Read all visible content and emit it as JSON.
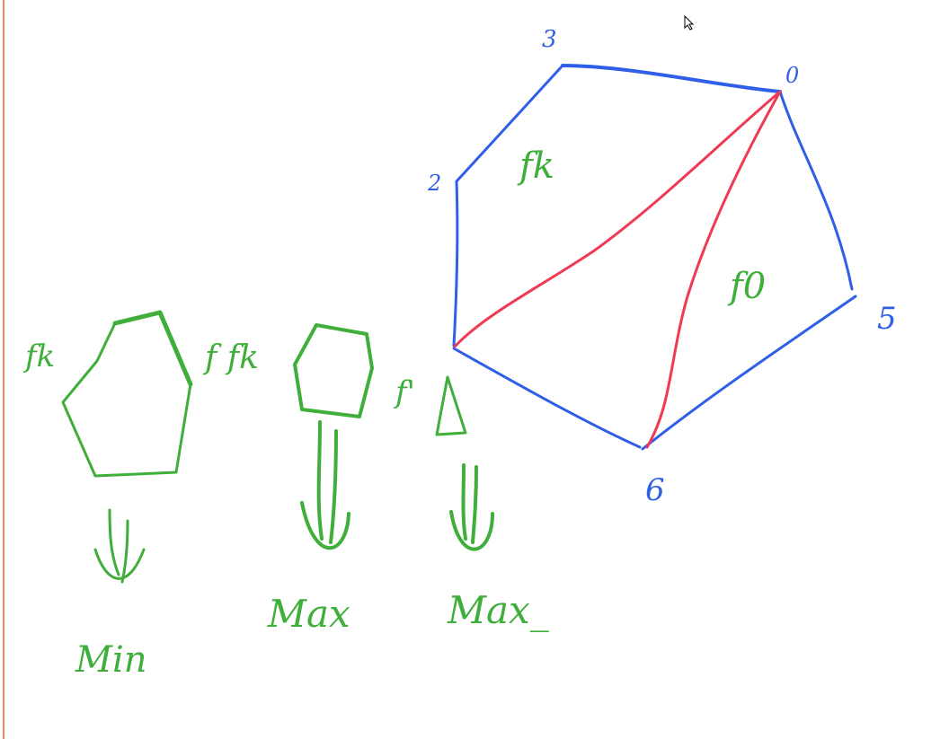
{
  "colors": {
    "polygon_edge": "#2f5fe6",
    "diagonal": "#f03a54",
    "annotation": "#3fae3a",
    "left_rule": "#f08a5d"
  },
  "polygon": {
    "vertex_labels": [
      "3",
      "0",
      "2",
      "5",
      "6"
    ]
  },
  "regions": {
    "upper_label": "fk",
    "lower_label": "f0"
  },
  "annotations": {
    "shape1_label": "fk",
    "shape1_result": "Min",
    "shape2_label": "f fk",
    "shape2_result": "Max",
    "shape3_label": "f'",
    "shape3_result": "Max_"
  },
  "cursor_icon": "pointer-cursor-icon"
}
